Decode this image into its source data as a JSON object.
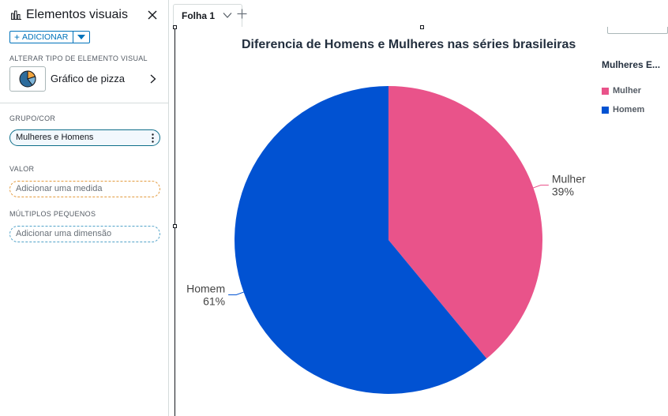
{
  "panel": {
    "title": "Elementos visuais",
    "add_label": "ADICIONAR",
    "change_type_label": "ALTERAR TIPO DE ELEMENTO VISUAL",
    "chart_type_label": "Gráfico de pizza",
    "group_color_label": "GRUPO/COR",
    "group_field": "Mulheres e Homens",
    "value_label": "VALOR",
    "value_placeholder": "Adicionar uma medida",
    "small_multiples_label": "MÚLTIPLOS PEQUENOS",
    "small_multiples_placeholder": "Adicionar uma dimensão"
  },
  "tabs": [
    {
      "label": "Folha 1"
    }
  ],
  "legend": {
    "title": "Mulheres E...",
    "items": [
      {
        "label": "Mulher",
        "color": "#e9538a"
      },
      {
        "label": "Homem",
        "color": "#0152d2"
      }
    ]
  },
  "chart_data": {
    "type": "pie",
    "title": "Diferencia de Homens e Mulheres nas séries brasileiras",
    "categories": [
      "Mulher",
      "Homem"
    ],
    "values": [
      39,
      61
    ],
    "percent_labels": [
      "39%",
      "61%"
    ],
    "colors": [
      "#e9538a",
      "#0152d2"
    ],
    "legend_position": "top-right"
  }
}
